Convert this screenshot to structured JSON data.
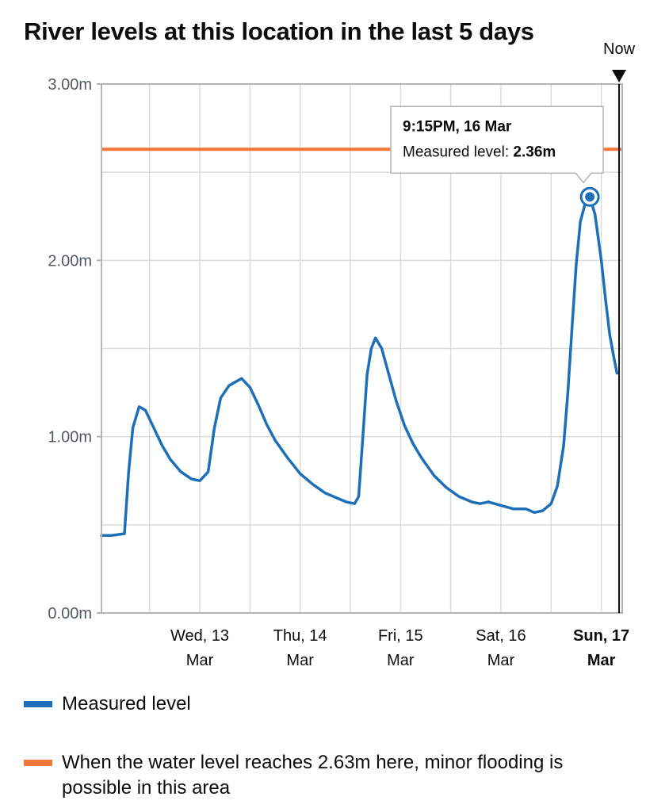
{
  "colors": {
    "measured": "#1d70b8",
    "threshold": "#f47738",
    "grid": "#dcdcdc",
    "axis": "#b1b4b6",
    "now_line": "#0b0c0c"
  },
  "now_label": "Now",
  "tooltip": {
    "time": "9:15PM, 16 Mar",
    "label": "Measured level:",
    "value": "2.36m"
  },
  "legend": {
    "measured": "Measured level",
    "threshold": "When the water level reaches 2.63m here, minor flooding is possible in this area"
  },
  "chart_data": {
    "type": "line",
    "title": "River levels at this location in the last 5 days",
    "xlabel": "",
    "ylabel": "",
    "x_unit": "days",
    "x_range": [
      "2024-03-12T00:30",
      "2024-03-17T05:00"
    ],
    "ylim": [
      0,
      3
    ],
    "y_ticks": [
      {
        "value": 0,
        "label": "0.00m"
      },
      {
        "value": 1,
        "label": "1.00m"
      },
      {
        "value": 2,
        "label": "2.00m"
      },
      {
        "value": 3,
        "label": "3.00m"
      }
    ],
    "x_ticks": [
      {
        "x": "2024-03-13T00:00",
        "line1": "Wed, 13",
        "line2": "Mar",
        "bold": false
      },
      {
        "x": "2024-03-14T00:00",
        "line1": "Thu, 14",
        "line2": "Mar",
        "bold": false
      },
      {
        "x": "2024-03-15T00:00",
        "line1": "Fri, 15",
        "line2": "Mar",
        "bold": false
      },
      {
        "x": "2024-03-16T00:00",
        "line1": "Sat, 16",
        "line2": "Mar",
        "bold": false
      },
      {
        "x": "2024-03-17T00:00",
        "line1": "Sun, 17",
        "line2": "Mar",
        "bold": true
      }
    ],
    "grid": true,
    "now": "2024-03-17T04:15",
    "threshold": {
      "value": 2.63,
      "label": "When the water level reaches 2.63m here, minor flooding is possible in this area"
    },
    "series": [
      {
        "name": "Measured level",
        "points": [
          [
            "2024-03-12T00:30",
            0.44
          ],
          [
            "2024-03-12T03:00",
            0.44
          ],
          [
            "2024-03-12T06:00",
            0.45
          ],
          [
            "2024-03-12T07:00",
            0.8
          ],
          [
            "2024-03-12T08:00",
            1.05
          ],
          [
            "2024-03-12T09:30",
            1.17
          ],
          [
            "2024-03-12T11:00",
            1.15
          ],
          [
            "2024-03-12T13:00",
            1.05
          ],
          [
            "2024-03-12T15:00",
            0.95
          ],
          [
            "2024-03-12T17:00",
            0.87
          ],
          [
            "2024-03-12T19:30",
            0.8
          ],
          [
            "2024-03-12T22:00",
            0.76
          ],
          [
            "2024-03-13T00:00",
            0.75
          ],
          [
            "2024-03-13T02:00",
            0.8
          ],
          [
            "2024-03-13T03:30",
            1.05
          ],
          [
            "2024-03-13T05:00",
            1.22
          ],
          [
            "2024-03-13T07:00",
            1.29
          ],
          [
            "2024-03-13T10:00",
            1.33
          ],
          [
            "2024-03-13T12:00",
            1.28
          ],
          [
            "2024-03-13T14:00",
            1.18
          ],
          [
            "2024-03-13T16:00",
            1.07
          ],
          [
            "2024-03-13T18:00",
            0.98
          ],
          [
            "2024-03-13T21:00",
            0.88
          ],
          [
            "2024-03-14T00:00",
            0.79
          ],
          [
            "2024-03-14T03:00",
            0.73
          ],
          [
            "2024-03-14T06:00",
            0.68
          ],
          [
            "2024-03-14T09:00",
            0.65
          ],
          [
            "2024-03-14T11:00",
            0.63
          ],
          [
            "2024-03-14T13:00",
            0.62
          ],
          [
            "2024-03-14T14:00",
            0.66
          ],
          [
            "2024-03-14T15:00",
            1.0
          ],
          [
            "2024-03-14T16:00",
            1.35
          ],
          [
            "2024-03-14T17:00",
            1.5
          ],
          [
            "2024-03-14T18:00",
            1.56
          ],
          [
            "2024-03-14T19:30",
            1.5
          ],
          [
            "2024-03-14T21:00",
            1.37
          ],
          [
            "2024-03-14T23:00",
            1.2
          ],
          [
            "2024-03-15T01:00",
            1.06
          ],
          [
            "2024-03-15T03:00",
            0.96
          ],
          [
            "2024-03-15T05:00",
            0.88
          ],
          [
            "2024-03-15T08:00",
            0.78
          ],
          [
            "2024-03-15T11:00",
            0.71
          ],
          [
            "2024-03-15T14:00",
            0.66
          ],
          [
            "2024-03-15T17:00",
            0.63
          ],
          [
            "2024-03-15T19:00",
            0.62
          ],
          [
            "2024-03-15T21:00",
            0.63
          ],
          [
            "2024-03-16T00:00",
            0.61
          ],
          [
            "2024-03-16T03:00",
            0.59
          ],
          [
            "2024-03-16T06:00",
            0.59
          ],
          [
            "2024-03-16T08:00",
            0.57
          ],
          [
            "2024-03-16T10:00",
            0.58
          ],
          [
            "2024-03-16T12:00",
            0.62
          ],
          [
            "2024-03-16T13:30",
            0.72
          ],
          [
            "2024-03-16T15:00",
            0.95
          ],
          [
            "2024-03-16T16:00",
            1.25
          ],
          [
            "2024-03-16T17:00",
            1.62
          ],
          [
            "2024-03-16T18:00",
            1.98
          ],
          [
            "2024-03-16T19:00",
            2.22
          ],
          [
            "2024-03-16T20:00",
            2.31
          ],
          [
            "2024-03-16T21:15",
            2.36
          ],
          [
            "2024-03-16T22:30",
            2.26
          ],
          [
            "2024-03-17T00:00",
            2.0
          ],
          [
            "2024-03-17T01:00",
            1.78
          ],
          [
            "2024-03-17T02:00",
            1.58
          ],
          [
            "2024-03-17T03:00",
            1.45
          ],
          [
            "2024-03-17T03:45",
            1.36
          ]
        ]
      }
    ],
    "highlight": {
      "x": "2024-03-16T21:15",
      "y": 2.36
    }
  }
}
